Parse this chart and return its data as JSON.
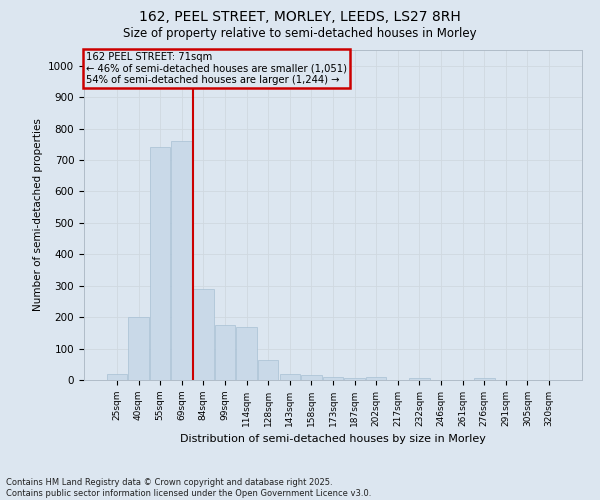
{
  "title1": "162, PEEL STREET, MORLEY, LEEDS, LS27 8RH",
  "title2": "Size of property relative to semi-detached houses in Morley",
  "xlabel": "Distribution of semi-detached houses by size in Morley",
  "ylabel": "Number of semi-detached properties",
  "categories": [
    "25sqm",
    "40sqm",
    "55sqm",
    "69sqm",
    "84sqm",
    "99sqm",
    "114sqm",
    "128sqm",
    "143sqm",
    "158sqm",
    "173sqm",
    "187sqm",
    "202sqm",
    "217sqm",
    "232sqm",
    "246sqm",
    "261sqm",
    "276sqm",
    "291sqm",
    "305sqm",
    "320sqm"
  ],
  "values": [
    20,
    200,
    740,
    760,
    290,
    175,
    170,
    65,
    20,
    15,
    10,
    5,
    10,
    0,
    5,
    0,
    0,
    5,
    0,
    0,
    0
  ],
  "bar_color": "#c9d9e8",
  "bar_edge_color": "#a8c0d4",
  "grid_color": "#d0d8e0",
  "bg_color": "#dce6f0",
  "vline_color": "#cc0000",
  "annotation_title": "162 PEEL STREET: 71sqm",
  "annotation_line1": "← 46% of semi-detached houses are smaller (1,051)",
  "annotation_line2": "54% of semi-detached houses are larger (1,244) →",
  "annotation_box_color": "#cc0000",
  "ylim_max": 1050,
  "yticks": [
    0,
    100,
    200,
    300,
    400,
    500,
    600,
    700,
    800,
    900,
    1000
  ],
  "footnote1": "Contains HM Land Registry data © Crown copyright and database right 2025.",
  "footnote2": "Contains public sector information licensed under the Open Government Licence v3.0."
}
